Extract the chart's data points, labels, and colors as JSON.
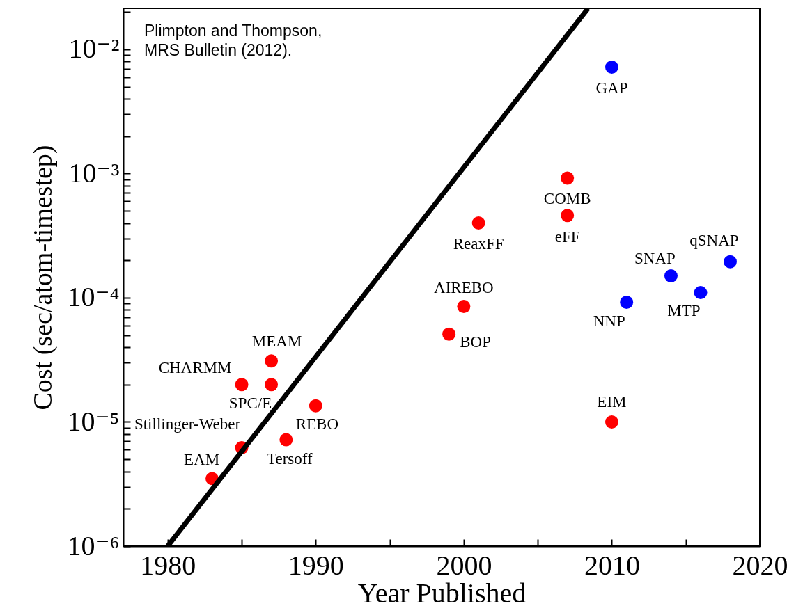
{
  "chart_data": {
    "type": "scatter",
    "xlabel": "Year Published",
    "ylabel": "Cost (sec/atom-timestep)",
    "log": "y",
    "grid": false,
    "xlim": [
      1977,
      2020
    ],
    "ylim": [
      1e-06,
      0.0214
    ],
    "xticks": [
      1980,
      {
        "value": 1985,
        "label": null
      },
      1990,
      {
        "value": 1995,
        "label": null
      },
      2000,
      {
        "value": 2005,
        "label": null
      },
      2010,
      {
        "value": 2015,
        "label": null
      },
      2020
    ],
    "yticks": [
      {
        "value": 1e-06,
        "label": "10⁻⁶"
      },
      {
        "value": 2e-06,
        "label": null
      },
      {
        "value": 3e-06,
        "label": null
      },
      {
        "value": 4e-06,
        "label": null
      },
      {
        "value": 5e-06,
        "label": null
      },
      {
        "value": 6e-06,
        "label": null
      },
      {
        "value": 7e-06,
        "label": null
      },
      {
        "value": 8e-06,
        "label": null
      },
      {
        "value": 9e-06,
        "label": null
      },
      {
        "value": 1e-05,
        "label": "10⁻⁵"
      },
      {
        "value": 2e-05,
        "label": null
      },
      {
        "value": 3e-05,
        "label": null
      },
      {
        "value": 4e-05,
        "label": null
      },
      {
        "value": 5e-05,
        "label": null
      },
      {
        "value": 6e-05,
        "label": null
      },
      {
        "value": 7e-05,
        "label": null
      },
      {
        "value": 8e-05,
        "label": null
      },
      {
        "value": 9e-05,
        "label": null
      },
      {
        "value": 0.0001,
        "label": "10⁻⁴"
      },
      {
        "value": 0.0002,
        "label": null
      },
      {
        "value": 0.0003,
        "label": null
      },
      {
        "value": 0.0004,
        "label": null
      },
      {
        "value": 0.0005,
        "label": null
      },
      {
        "value": 0.0006,
        "label": null
      },
      {
        "value": 0.0007,
        "label": null
      },
      {
        "value": 0.0008,
        "label": null
      },
      {
        "value": 0.0009,
        "label": null
      },
      {
        "value": 0.001,
        "label": "10⁻³"
      },
      {
        "value": 0.002,
        "label": null
      },
      {
        "value": 0.003,
        "label": null
      },
      {
        "value": 0.004,
        "label": null
      },
      {
        "value": 0.005,
        "label": null
      },
      {
        "value": 0.006,
        "label": null
      },
      {
        "value": 0.007,
        "label": null
      },
      {
        "value": 0.008,
        "label": null
      },
      {
        "value": 0.009,
        "label": null
      },
      {
        "value": 0.01,
        "label": "10⁻²"
      },
      {
        "value": 0.02,
        "label": null
      }
    ],
    "series": [
      {
        "marker": "circle",
        "color": "#ff0000",
        "x": [
          1983,
          1985,
          1985,
          1987,
          1987,
          1988,
          1990,
          1999,
          2000,
          2001,
          2007,
          2007,
          2010
        ],
        "values": [
          3.5e-06,
          6.2e-06,
          2e-05,
          2e-05,
          3.1e-05,
          7.2e-06,
          1.35e-05,
          5.1e-05,
          8.5e-05,
          0.0004,
          0.00092,
          0.00046,
          1e-05
        ]
      },
      {
        "marker": "circle",
        "color": "#0000ff",
        "x": [
          2010,
          2011,
          2014,
          2016,
          2018
        ],
        "values": [
          0.0072,
          9.2e-05,
          0.00015,
          0.00011,
          0.000195
        ]
      },
      {
        "type": "line",
        "color": "#000000",
        "x": [
          1980,
          2008.4
        ],
        "values": [
          1e-06,
          0.0214
        ]
      }
    ],
    "annotations": [
      "Plimpton and Thompson,",
      "MRS Bulletin (2012).",
      {
        "text": "EAM",
        "x": 1983,
        "y": 3.5e-06
      },
      {
        "text": "Stillinger-Weber",
        "x": 1985,
        "y": 6.2e-06
      },
      {
        "text": "CHARMM",
        "x": 1985,
        "y": 2e-05
      },
      {
        "text": "SPC/E",
        "x": 1987,
        "y": 2e-05
      },
      {
        "text": "MEAM",
        "x": 1987,
        "y": 3.1e-05
      },
      {
        "text": "Tersoff",
        "x": 1988,
        "y": 7.2e-06
      },
      {
        "text": "REBO",
        "x": 1990,
        "y": 1.35e-05
      },
      {
        "text": "BOP",
        "x": 1999,
        "y": 5.1e-05
      },
      {
        "text": "AIREBO",
        "x": 2000,
        "y": 8.5e-05
      },
      {
        "text": "ReaxFF",
        "x": 2001,
        "y": 0.0004
      },
      {
        "text": "COMB",
        "x": 2007,
        "y": 0.00092
      },
      {
        "text": "eFF",
        "x": 2007,
        "y": 0.00046
      },
      {
        "text": "EIM",
        "x": 2010,
        "y": 1e-05
      },
      {
        "text": "GAP",
        "x": 2010,
        "y": 0.0072
      },
      {
        "text": "NNP",
        "x": 2011,
        "y": 9.2e-05
      },
      {
        "text": "SNAP",
        "x": 2014,
        "y": 0.00015
      },
      {
        "text": "MTP",
        "x": 2016,
        "y": 0.00011
      },
      {
        "text": "qSNAP",
        "x": 2018,
        "y": 0.000195
      }
    ]
  }
}
